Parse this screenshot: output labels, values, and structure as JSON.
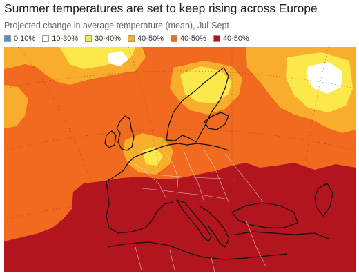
{
  "title": "Summer temperatures are set to keep rising across Europe",
  "subtitle": "Projected change in average temperature (mean), Jul-Sept",
  "legend": [
    {
      "label": "0.10%",
      "color": "#4f8fe0"
    },
    {
      "label": "10-30%",
      "color": "#ffffff"
    },
    {
      "label": "30-40%",
      "color": "#fbe84a"
    },
    {
      "label": "40-50%",
      "color": "#f9ad2d"
    },
    {
      "label": "40-50%",
      "color": "#f16a1f"
    },
    {
      "label": "40-50%",
      "color": "#b3151e"
    }
  ]
}
